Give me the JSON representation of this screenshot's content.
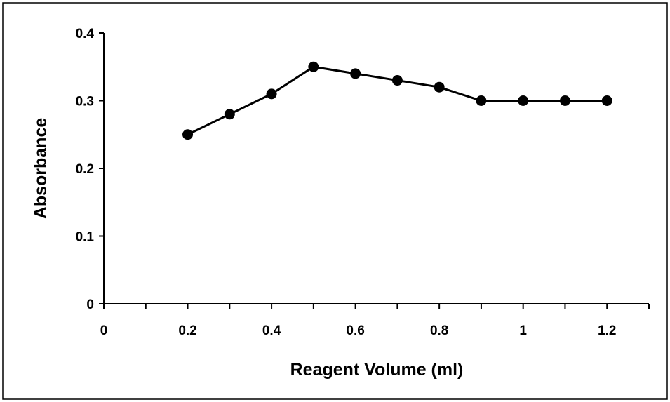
{
  "chart_data": {
    "type": "line",
    "title": "",
    "xlabel": "Reagent Volume (ml)",
    "ylabel": "Absorbance",
    "xlim": [
      0,
      1.3
    ],
    "ylim": [
      0,
      0.4
    ],
    "x_ticks": [
      0,
      0.2,
      0.4,
      0.6,
      0.8,
      1,
      1.2
    ],
    "x_tick_labels": [
      "0",
      "0.2",
      "0.4",
      "0.6",
      "0.8",
      "1",
      "1.2"
    ],
    "y_ticks": [
      0,
      0.1,
      0.2,
      0.3,
      0.4
    ],
    "y_tick_labels": [
      "0",
      "0.1",
      "0.2",
      "0.3",
      "0.4"
    ],
    "grid": false,
    "legend": "none",
    "series": [
      {
        "x": [
          0.2,
          0.3,
          0.4,
          0.5,
          0.6,
          0.7,
          0.8,
          0.9,
          1.0,
          1.1,
          1.2
        ],
        "y": [
          0.25,
          0.28,
          0.31,
          0.35,
          0.34,
          0.33,
          0.32,
          0.3,
          0.3,
          0.3,
          0.3
        ],
        "color": "#000000",
        "marker": "circle"
      }
    ]
  }
}
